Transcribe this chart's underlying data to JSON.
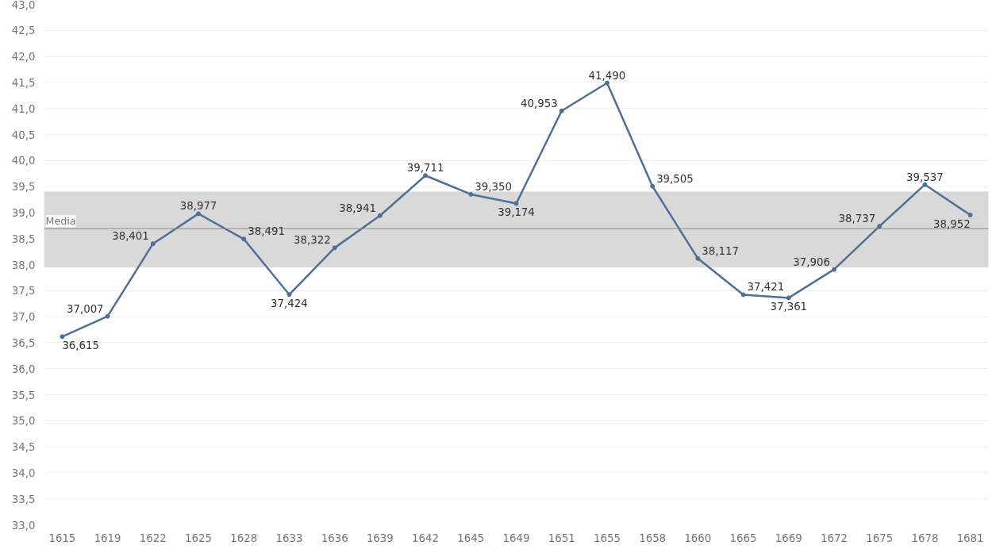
{
  "chart_data": {
    "type": "line",
    "categories": [
      "1615",
      "1619",
      "1622",
      "1625",
      "1628",
      "1633",
      "1636",
      "1639",
      "1642",
      "1645",
      "1649",
      "1651",
      "1655",
      "1658",
      "1660",
      "1665",
      "1669",
      "1672",
      "1675",
      "1678",
      "1681"
    ],
    "series": [
      {
        "color": "#4e6f96",
        "values": [
          36.615,
          37.007,
          38.401,
          38.977,
          38.491,
          37.424,
          38.322,
          38.941,
          39.711,
          39.35,
          39.174,
          40.953,
          41.49,
          39.505,
          38.117,
          37.421,
          37.361,
          37.906,
          38.737,
          39.537,
          38.952
        ]
      }
    ],
    "ylim": [
      33.0,
      43.0
    ],
    "yticks": [
      {
        "value": 33.0,
        "label": "33,0"
      },
      {
        "value": 33.5,
        "label": "33,5"
      },
      {
        "value": 34.0,
        "label": "34,0"
      },
      {
        "value": 34.5,
        "label": "34,5"
      },
      {
        "value": 35.0,
        "label": "35,0"
      },
      {
        "value": 35.5,
        "label": "35,5"
      },
      {
        "value": 36.0,
        "label": "36,0"
      },
      {
        "value": 36.5,
        "label": "36,5"
      },
      {
        "value": 37.0,
        "label": "37,0"
      },
      {
        "value": 37.5,
        "label": "37,5"
      },
      {
        "value": 38.0,
        "label": "38,0"
      },
      {
        "value": 38.5,
        "label": "38,5"
      },
      {
        "value": 39.0,
        "label": "39,0"
      },
      {
        "value": 39.5,
        "label": "39,5"
      },
      {
        "value": 40.0,
        "label": "40,0"
      },
      {
        "value": 40.5,
        "label": "40,5"
      },
      {
        "value": 41.0,
        "label": "41,0"
      },
      {
        "value": 41.5,
        "label": "41,5"
      },
      {
        "value": 42.0,
        "label": "42,0"
      },
      {
        "value": 42.5,
        "label": "42,5"
      },
      {
        "value": 43.0,
        "label": "43,0"
      }
    ],
    "value_labels": [
      "36,615",
      "37,007",
      "38,401",
      "38,977",
      "38,491",
      "37,424",
      "38,322",
      "38,941",
      "39,711",
      "39,350",
      "39,174",
      "40,953",
      "41,490",
      "39,505",
      "38,117",
      "37,421",
      "37,361",
      "37,906",
      "38,737",
      "39,537",
      "38,952"
    ],
    "ref_lines": [
      {
        "axis": "y",
        "value": 38.69,
        "label": "Media",
        "color": "#8c8c8c"
      }
    ],
    "bands": [
      {
        "axis": "y",
        "from": 37.95,
        "to": 39.4,
        "color": "#d9d9d9"
      }
    ],
    "grid": "y",
    "marker": "circle",
    "line_style": "solid"
  }
}
